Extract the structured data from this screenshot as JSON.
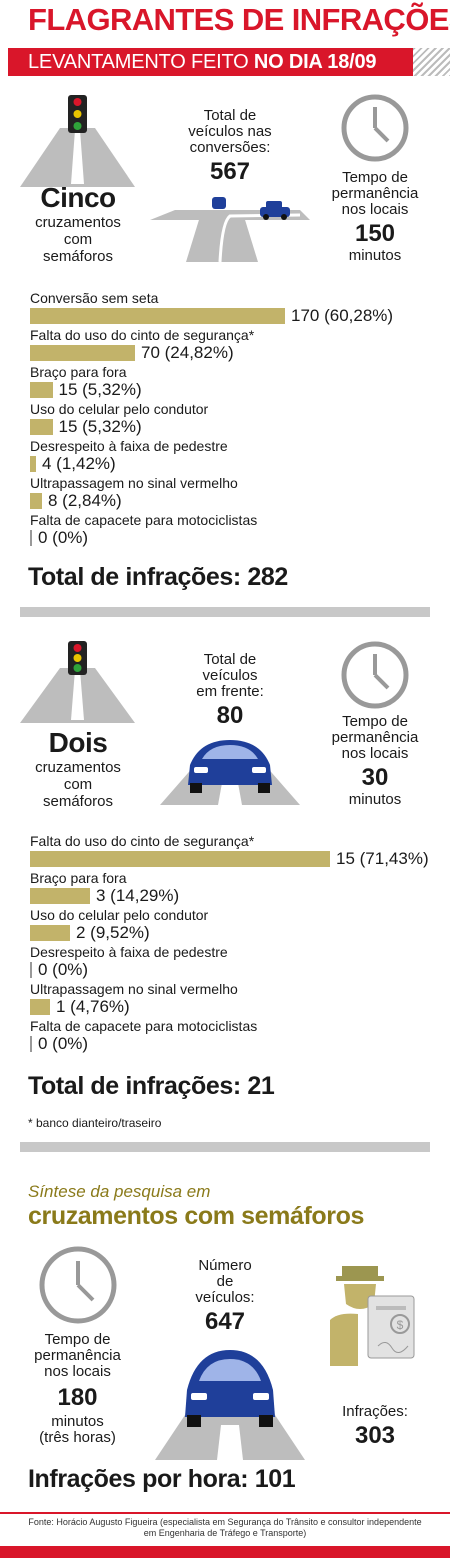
{
  "header": {
    "title": "FLAGRANTES DE INFRAÇÕES",
    "banner_prefix": "LEVANTAMENTO FEITO ",
    "banner_bold": "NO DIA 18/09"
  },
  "section1": {
    "count_word": "Cinco",
    "count_sub": [
      "cruzamentos",
      "com",
      "semáforos"
    ],
    "vehicles_label": [
      "Total de",
      "veículos nas",
      "conversões:"
    ],
    "vehicles_value": "567",
    "time_label": [
      "Tempo de",
      "permanência",
      "nos locais"
    ],
    "time_value": "150",
    "time_unit": "minutos",
    "total": "Total de infrações: 282"
  },
  "section2": {
    "count_word": "Dois",
    "count_sub": [
      "cruzamentos",
      "com",
      "semáforos"
    ],
    "vehicles_label": [
      "Total de",
      "veículos",
      "em frente:"
    ],
    "vehicles_value": "80",
    "time_label": [
      "Tempo de",
      "permanência",
      "nos locais"
    ],
    "time_value": "30",
    "time_unit": "minutos",
    "total": "Total de infrações: 21",
    "footnote": "* banco dianteiro/traseiro"
  },
  "summary": {
    "kicker": "Síntese da pesquisa em",
    "headline": "cruzamentos com semáforos",
    "time_label": [
      "Tempo de",
      "permanência",
      "nos locais"
    ],
    "time_value": "180",
    "time_unit": [
      "minutos",
      "(três horas)"
    ],
    "vehicles_label": [
      "Número",
      "de",
      "veículos:"
    ],
    "vehicles_value": "647",
    "infractions_label": "Infrações:",
    "infractions_value": "303",
    "per_hour": "Infrações por hora: 101"
  },
  "footer": {
    "source_line1": "Fonte: Horácio Augusto Figueira (especialista em Segurança do Trânsito e consultor independente",
    "source_line2": "em Engenharia de Tráfego e Transporte)"
  },
  "colors": {
    "red": "#d9162a",
    "bar": "#c2b36a",
    "olive": "#8a7a1a",
    "gray": "#c8c8c8",
    "blue": "#1f3f9a"
  },
  "icons": [
    "traffic-light-icon",
    "road-icon",
    "clock-icon",
    "car-icon",
    "traffic-officer-icon"
  ],
  "chart_data": [
    {
      "type": "bar",
      "orientation": "horizontal",
      "categories": [
        "Conversão sem seta",
        "Falta do uso do cinto de segurança*",
        "Braço para fora",
        "Uso do celular pelo condutor",
        "Desrespeito à faixa de pedestre",
        "Ultrapassagem no sinal vermelho",
        "Falta de capacete para motociclistas"
      ],
      "values": [
        170,
        70,
        15,
        15,
        4,
        8,
        0
      ],
      "labels": [
        "170 (60,28%)",
        "70 (24,82%)",
        "15 (5,32%)",
        "15 (5,32%)",
        "4 (1,42%)",
        "8 (2,84%)",
        "0 (0%)"
      ]
    },
    {
      "type": "bar",
      "orientation": "horizontal",
      "categories": [
        "Falta do uso do cinto de segurança*",
        "Braço para fora",
        "Uso do celular pelo condutor",
        "Desrespeito à faixa de pedestre",
        "Ultrapassagem no sinal vermelho",
        "Falta de capacete para motociclistas"
      ],
      "values": [
        15,
        3,
        2,
        0,
        1,
        0
      ],
      "labels": [
        "15 (71,43%)",
        "3 (14,29%)",
        "2 (9,52%)",
        "0 (0%)",
        "1 (4,76%)",
        "0 (0%)"
      ]
    }
  ]
}
